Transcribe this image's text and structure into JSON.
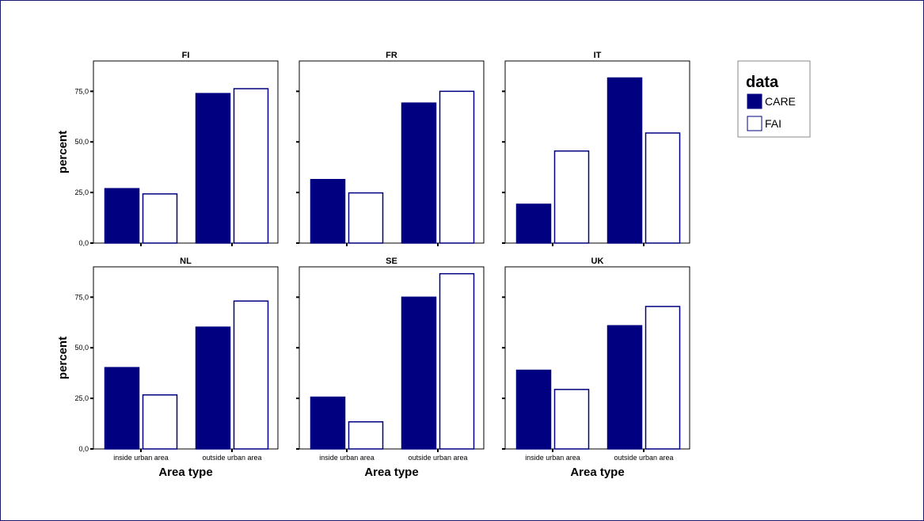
{
  "chart_data": {
    "type": "bar",
    "facets": [
      "FI",
      "FR",
      "IT",
      "NL",
      "SE",
      "UK"
    ],
    "categories": [
      "inside urban area",
      "outside urban area"
    ],
    "series": [
      {
        "name": "CARE",
        "values": {
          "FI": [
            26.9,
            73.9
          ],
          "FR": [
            31.4,
            69.2
          ],
          "IT": [
            19.2,
            81.6
          ],
          "NL": [
            40.2,
            60.2
          ],
          "SE": [
            25.6,
            75.0
          ],
          "UK": [
            38.9,
            60.9
          ]
        }
      },
      {
        "name": "FAI",
        "values": {
          "FI": [
            24.3,
            76.3
          ],
          "FR": [
            24.8,
            75.0
          ],
          "IT": [
            45.5,
            54.4
          ],
          "NL": [
            26.7,
            73.1
          ],
          "SE": [
            13.4,
            86.6
          ],
          "UK": [
            29.4,
            70.4
          ]
        }
      }
    ],
    "ylabel": "percent",
    "xlabel": "Area type",
    "ylim": [
      0,
      90
    ],
    "yticks": [
      "0,0",
      "25,0",
      "50,0",
      "75,0"
    ],
    "ytick_values": [
      0,
      25,
      50,
      75
    ],
    "legend": {
      "title": "data",
      "placement": "right"
    },
    "colors": {
      "CARE": "#000080",
      "FAI": "#ffffff",
      "outline": "#000080"
    }
  }
}
